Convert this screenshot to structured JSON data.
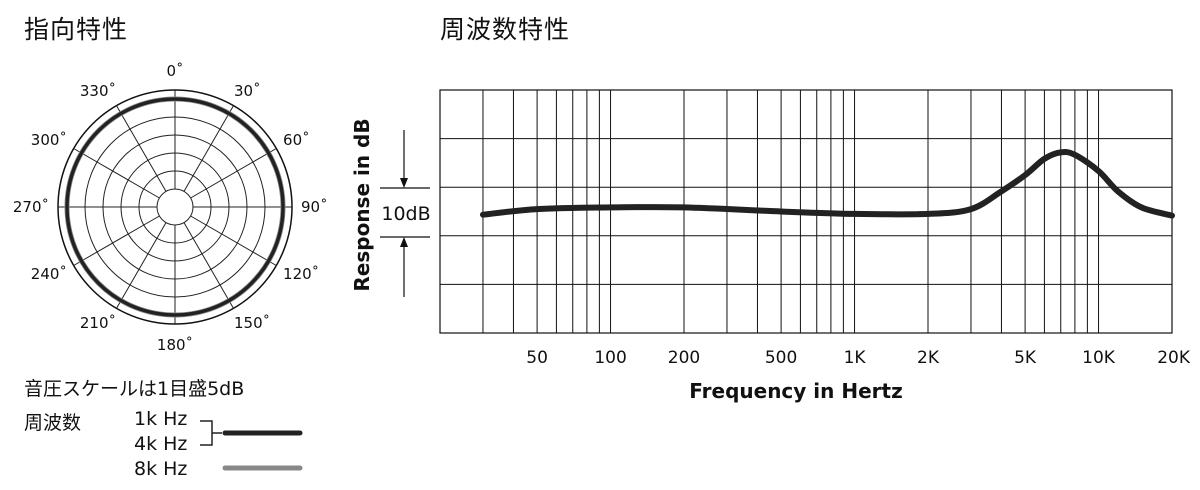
{
  "polar": {
    "title": "指向特性",
    "angle_labels": [
      "0˚",
      "30˚",
      "60˚",
      "90˚",
      "120˚",
      "150˚",
      "180˚",
      "210˚",
      "240˚",
      "270˚",
      "300˚",
      "330˚"
    ],
    "scale_note": "音圧スケールは1目盛5dB",
    "legend_label": "周波数",
    "legend": [
      {
        "label": "1k Hz",
        "color": "#222222"
      },
      {
        "label": "4k Hz",
        "color": "#222222"
      },
      {
        "label": "8k Hz",
        "color": "#888888"
      }
    ]
  },
  "freq": {
    "title": "周波数特性",
    "scale_label": "10dB"
  },
  "chart_data": [
    {
      "type": "polar",
      "pattern": "omnidirectional",
      "series": [
        {
          "name": "1k Hz",
          "color": "#222222",
          "level_fraction": 1.0
        },
        {
          "name": "4k Hz",
          "color": "#222222",
          "level_fraction": 1.0
        },
        {
          "name": "8k Hz",
          "color": "#888888",
          "level_fraction": 1.0
        }
      ]
    },
    {
      "type": "line",
      "title": "",
      "xlabel": "Frequency in Hertz",
      "ylabel": "Response in dB",
      "xscale": "log",
      "xlim": [
        20,
        20000
      ],
      "x_tick_labels": [
        {
          "value": 50,
          "label": "50"
        },
        {
          "value": 100,
          "label": "100"
        },
        {
          "value": 200,
          "label": "200"
        },
        {
          "value": 500,
          "label": "500"
        },
        {
          "value": 1000,
          "label": "1K"
        },
        {
          "value": 2000,
          "label": "2K"
        },
        {
          "value": 5000,
          "label": "5K"
        },
        {
          "value": 10000,
          "label": "10K"
        },
        {
          "value": 20000,
          "label": "20K"
        }
      ],
      "ylim": [
        -15,
        15
      ],
      "grid": true,
      "series": [
        {
          "x": [
            30,
            50,
            100,
            200,
            500,
            1000,
            2000,
            3000,
            4000,
            5000,
            6000,
            7000,
            8000,
            10000,
            12000,
            15000,
            20000
          ],
          "y": [
            -0.4,
            0.3,
            0.5,
            0.5,
            0,
            -0.3,
            -0.3,
            0.3,
            2.5,
            4.5,
            6.5,
            7.3,
            7,
            5,
            2.5,
            0.5,
            -0.5
          ]
        }
      ]
    }
  ]
}
